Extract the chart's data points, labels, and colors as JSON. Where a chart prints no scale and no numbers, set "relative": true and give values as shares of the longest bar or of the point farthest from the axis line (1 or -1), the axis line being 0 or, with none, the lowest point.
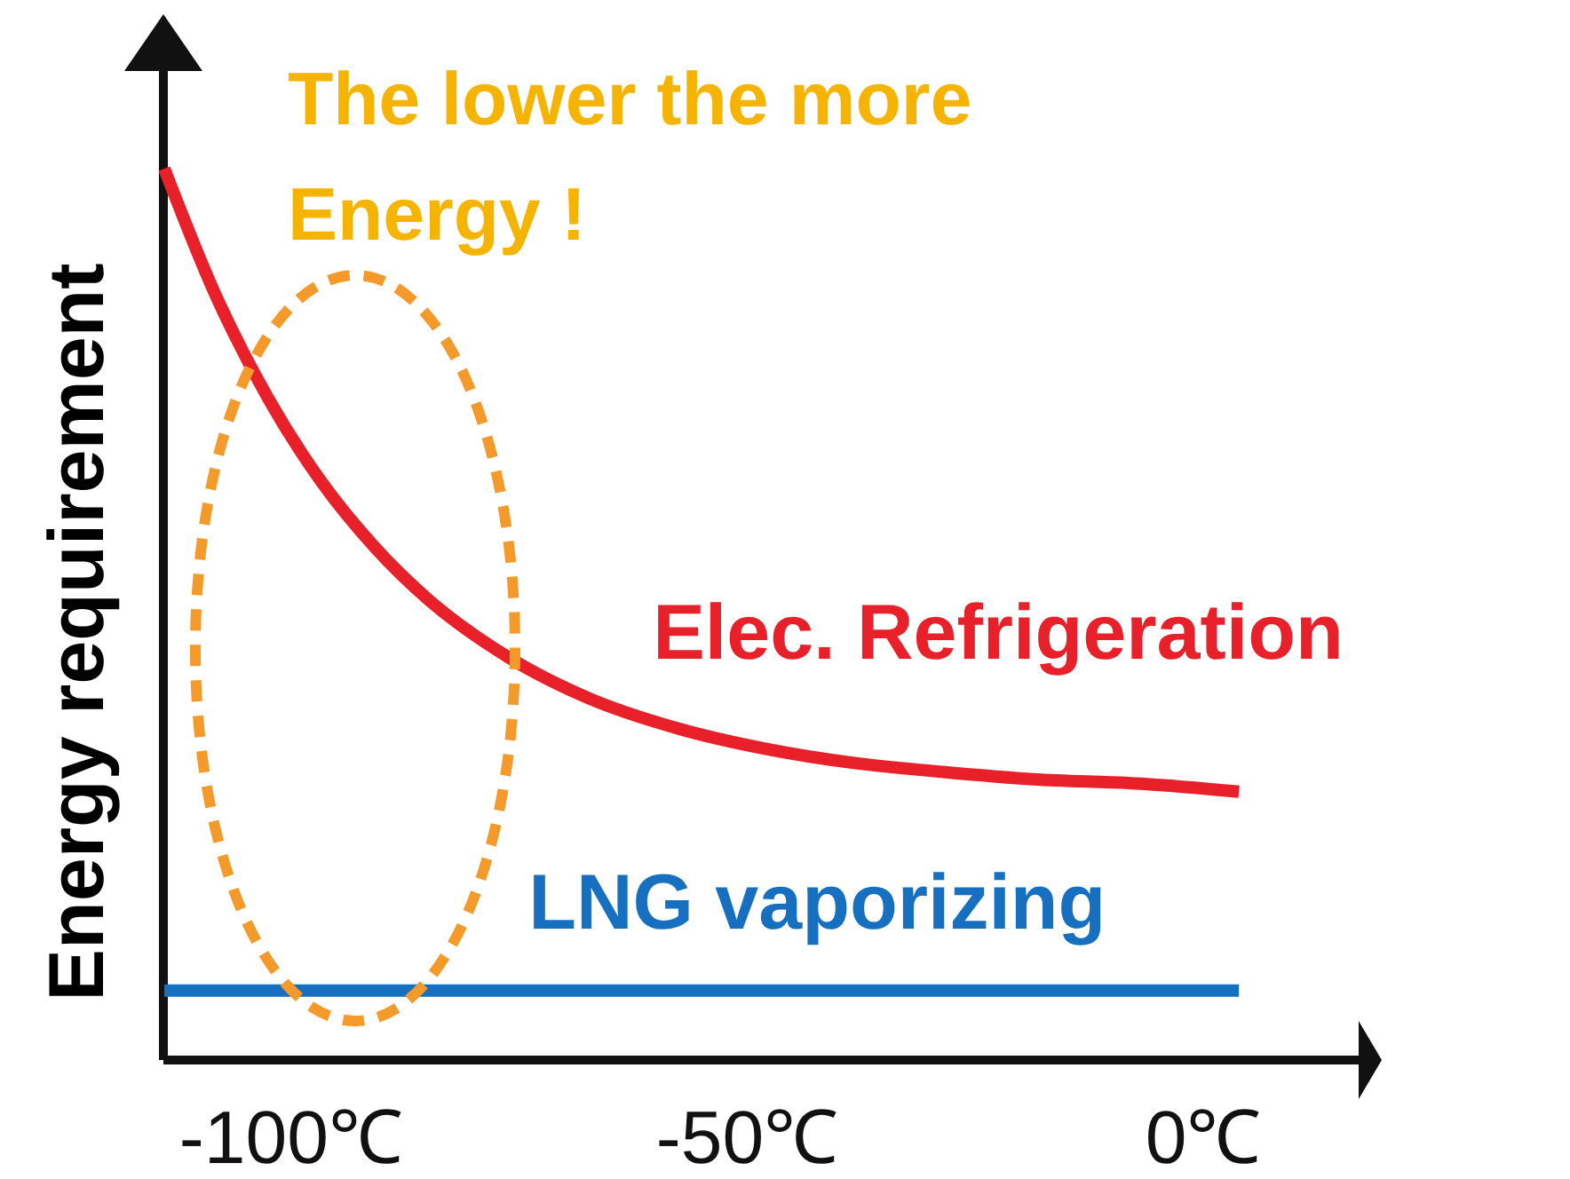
{
  "chart_data": {
    "type": "line",
    "relative": true,
    "ylabel": "Energy requirement",
    "xlim": [
      -114,
      18
    ],
    "xticks": [
      {
        "value": -100,
        "label": "-100℃"
      },
      {
        "value": -50,
        "label": "-50℃"
      },
      {
        "value": 0,
        "label": "0℃"
      }
    ],
    "annotations": [
      "The lower the more Energy !"
    ],
    "series": [
      {
        "name": "Elec. Refrigeration",
        "color": "#e8202a",
        "x": [
          -113.9,
          -108.4,
          -102.5,
          -96.7,
          -90.8,
          -85.0,
          -76.2,
          -67.4,
          -57.6,
          -47.9,
          -38.1,
          -28.3,
          -18.6,
          -6.8,
          3.9
        ],
        "values": [
          1,
          0.861,
          0.742,
          0.649,
          0.575,
          0.517,
          0.452,
          0.406,
          0.372,
          0.349,
          0.333,
          0.323,
          0.315,
          0.31,
          0.301
        ]
      },
      {
        "name": "LNG vaporizing",
        "color": "#1770bf",
        "x": [
          -113.9,
          3.9
        ],
        "values": [
          0.078,
          0.078
        ]
      }
    ]
  }
}
